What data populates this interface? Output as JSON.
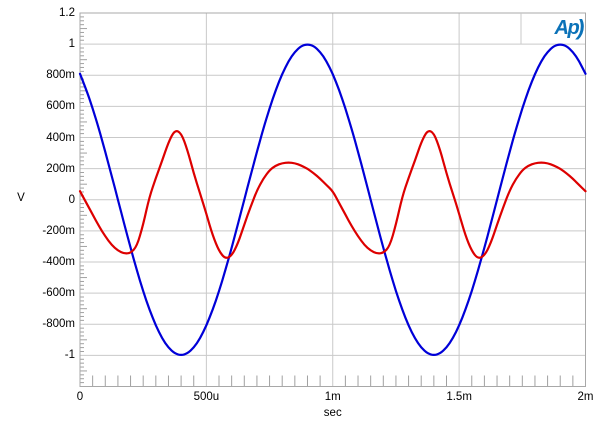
{
  "branding": {
    "logo_text": "Ap",
    "logo_paren": ")",
    "logo_color": "#0b72b8"
  },
  "colors": {
    "grid": "#c9c9c9",
    "border": "#a8a8a8",
    "tick": "#a0a0a0",
    "blue_trace": "#0000d8",
    "red_trace": "#dd0000",
    "background": "#ffffff"
  },
  "chart_data": {
    "type": "line",
    "title": "",
    "xlabel": "sec",
    "ylabel": "V",
    "xlim_ms": [
      0,
      2
    ],
    "ylim_v": [
      -1.2,
      1.2
    ],
    "grid": true,
    "x_ticks": [
      {
        "t": 0,
        "label": "0"
      },
      {
        "t": 0.5,
        "label": "500u"
      },
      {
        "t": 1,
        "label": "1m"
      },
      {
        "t": 1.5,
        "label": "1.5m"
      },
      {
        "t": 2,
        "label": "2m"
      }
    ],
    "y_ticks": [
      {
        "v": 1.2,
        "label": "1.2"
      },
      {
        "v": 1.0,
        "label": "1"
      },
      {
        "v": 0.8,
        "label": "800m"
      },
      {
        "v": 0.6,
        "label": "600m"
      },
      {
        "v": 0.4,
        "label": "400m"
      },
      {
        "v": 0.2,
        "label": "200m"
      },
      {
        "v": 0.0,
        "label": "0"
      },
      {
        "v": -0.2,
        "label": "-200m"
      },
      {
        "v": -0.4,
        "label": "-400m"
      },
      {
        "v": -0.6,
        "label": "-600m"
      },
      {
        "v": -0.8,
        "label": "-800m"
      },
      {
        "v": -1.0,
        "label": "-1"
      }
    ],
    "y_gridline_step_v": 0.2,
    "x_gridline_step_ms": 0.5,
    "y_minor_tick_step_v": 0.025,
    "x_minor_tick_step_ms": 0.05,
    "sample_step_ms": 0.025,
    "series": [
      {
        "name": "blue",
        "color": "#0000d8",
        "description": "1 kHz sine, 1 V peak, value at t=0 is +0.81 V falling; minima -1 V at 0.4 ms and 1.4 ms; maxima +1 V at 0.9 ms and 1.9 ms",
        "values": [
          0.809,
          0.707,
          0.588,
          0.454,
          0.309,
          0.156,
          0,
          -0.156,
          -0.309,
          -0.454,
          -0.588,
          -0.707,
          -0.809,
          -0.891,
          -0.951,
          -0.988,
          -1,
          -0.988,
          -0.951,
          -0.891,
          -0.809,
          -0.707,
          -0.588,
          -0.454,
          -0.309,
          -0.156,
          0,
          0.156,
          0.309,
          0.454,
          0.588,
          0.707,
          0.809,
          0.891,
          0.951,
          0.988,
          1,
          0.988,
          0.951,
          0.891,
          0.809,
          0.707,
          0.588,
          0.454,
          0.309,
          0.156,
          0,
          -0.156,
          -0.309,
          -0.454,
          -0.588,
          -0.707,
          -0.809,
          -0.891,
          -0.951,
          -0.988,
          -1,
          -0.988,
          -0.951,
          -0.891,
          -0.809,
          -0.707,
          -0.588,
          -0.454,
          -0.309,
          -0.156,
          0,
          0.156,
          0.309,
          0.454,
          0.588,
          0.707,
          0.809,
          0.891,
          0.951,
          0.988,
          1,
          0.988,
          0.951,
          0.891,
          0.809
        ]
      },
      {
        "name": "red",
        "color": "#dd0000",
        "description": "distortion residual, period 1 ms; dips -0.35 V near 0.17 ms, peak +0.45 V at 0.375 ms, dip -0.38 V at 0.575 ms, broad hump +0.24 V near 0.83 ms",
        "values": [
          0.055,
          -0.02,
          -0.095,
          -0.17,
          -0.235,
          -0.29,
          -0.327,
          -0.346,
          -0.342,
          -0.3,
          -0.16,
          0.02,
          0.14,
          0.25,
          0.37,
          0.448,
          0.43,
          0.32,
          0.17,
          0.04,
          -0.09,
          -0.23,
          -0.33,
          -0.38,
          -0.36,
          -0.28,
          -0.16,
          -0.045,
          0.06,
          0.135,
          0.19,
          0.22,
          0.235,
          0.24,
          0.235,
          0.22,
          0.2,
          0.17,
          0.135,
          0.095,
          0.055,
          -0.02,
          -0.095,
          -0.17,
          -0.235,
          -0.29,
          -0.327,
          -0.346,
          -0.342,
          -0.3,
          -0.16,
          0.02,
          0.14,
          0.25,
          0.37,
          0.448,
          0.43,
          0.32,
          0.17,
          0.04,
          -0.09,
          -0.23,
          -0.33,
          -0.38,
          -0.36,
          -0.28,
          -0.16,
          -0.045,
          0.06,
          0.135,
          0.19,
          0.22,
          0.235,
          0.24,
          0.235,
          0.22,
          0.2,
          0.17,
          0.135,
          0.095,
          0.055
        ]
      }
    ]
  }
}
